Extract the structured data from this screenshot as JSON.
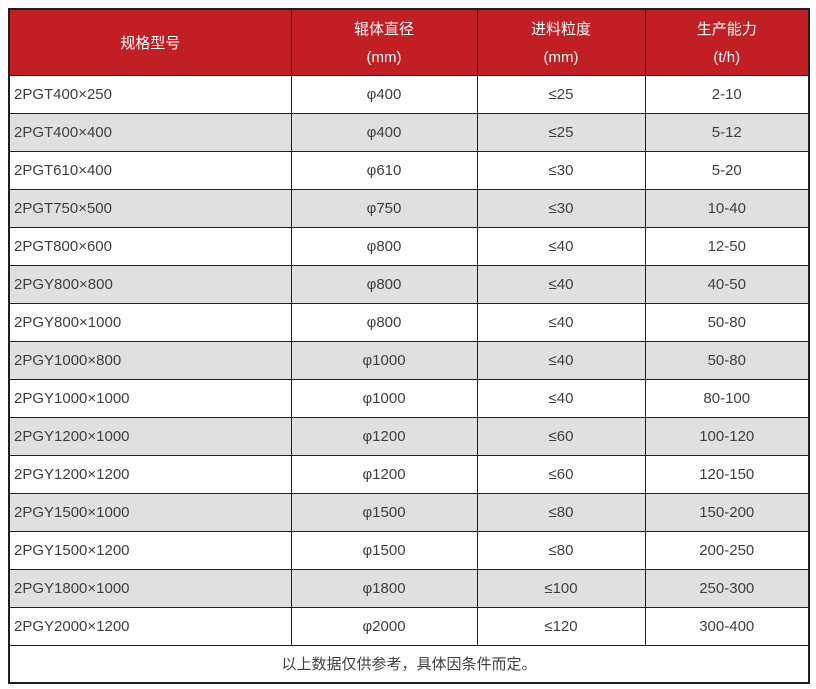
{
  "colors": {
    "header_bg": "#C21F25",
    "row_alt_bg": "#E0E0E0",
    "border": "#1F1F1F",
    "text": "#404040",
    "header_text": "#FFFFFF"
  },
  "table": {
    "columns": [
      {
        "label": "规格型号",
        "unit": ""
      },
      {
        "label": "辊体直径",
        "unit": "(mm)"
      },
      {
        "label": "进料粒度",
        "unit": "(mm)"
      },
      {
        "label": "生产能力",
        "unit": "(t/h)"
      }
    ],
    "rows": [
      [
        "2PGT400×250",
        "φ400",
        "≤25",
        "2-10"
      ],
      [
        "2PGT400×400",
        "φ400",
        "≤25",
        "5-12"
      ],
      [
        "2PGT610×400",
        "φ610",
        "≤30",
        "5-20"
      ],
      [
        "2PGT750×500",
        "φ750",
        "≤30",
        "10-40"
      ],
      [
        "2PGT800×600",
        "φ800",
        "≤40",
        "12-50"
      ],
      [
        "2PGY800×800",
        "φ800",
        "≤40",
        "40-50"
      ],
      [
        "2PGY800×1000",
        "φ800",
        "≤40",
        "50-80"
      ],
      [
        "2PGY1000×800",
        "φ1000",
        "≤40",
        "50-80"
      ],
      [
        "2PGY1000×1000",
        "φ1000",
        "≤40",
        "80-100"
      ],
      [
        "2PGY1200×1000",
        "φ1200",
        "≤60",
        "100-120"
      ],
      [
        "2PGY1200×1200",
        "φ1200",
        "≤60",
        "120-150"
      ],
      [
        "2PGY1500×1000",
        "φ1500",
        "≤80",
        "150-200"
      ],
      [
        "2PGY1500×1200",
        "φ1500",
        "≤80",
        "200-250"
      ],
      [
        "2PGY1800×1000",
        "φ1800",
        "≤100",
        "250-300"
      ],
      [
        "2PGY2000×1200",
        "φ2000",
        "≤120",
        "300-400"
      ]
    ],
    "footer_note": "以上数据仅供参考，具体因条件而定。"
  }
}
